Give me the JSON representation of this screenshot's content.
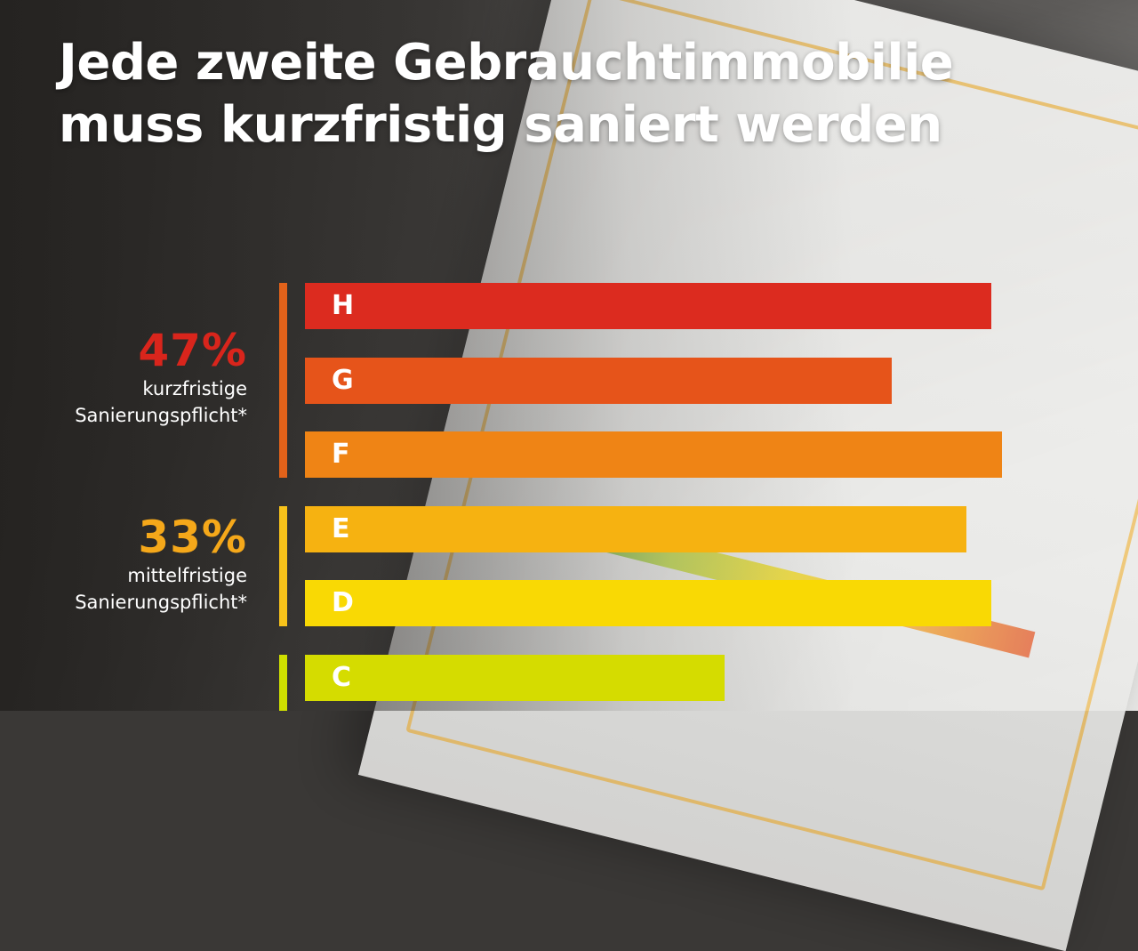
{
  "title_lines": [
    "Jede zweite Gebrauchtimmobilie",
    "muss kurzfristig saniert werden"
  ],
  "groups": [
    {
      "pct": "47%",
      "line1": "kurzfristige",
      "line2": "Sanierungspflicht*",
      "color": "#d9251c",
      "line_color": "#e2621a"
    },
    {
      "pct": "33%",
      "line1": "mittelfristige",
      "line2": "Sanierungspflicht*",
      "color": "#f5a81a",
      "line_color": "#f7c21a"
    },
    {
      "line_color": "#cfe000"
    }
  ],
  "chart_data": {
    "type": "bar",
    "orientation": "horizontal",
    "categories": [
      "H",
      "G",
      "F",
      "E",
      "D",
      "C"
    ],
    "values": [
      96.5,
      82.5,
      98,
      93,
      96.5,
      59
    ],
    "colors": [
      "#dc2b1f",
      "#e6541a",
      "#ef8415",
      "#f6b211",
      "#f9d904",
      "#d5dc00"
    ],
    "xlim": [
      0,
      100
    ],
    "title": "Jede zweite Gebrauchtimmobilie muss kurzfristig saniert werden",
    "xlabel": "",
    "ylabel": "",
    "grid": false,
    "axes_visible": false
  }
}
